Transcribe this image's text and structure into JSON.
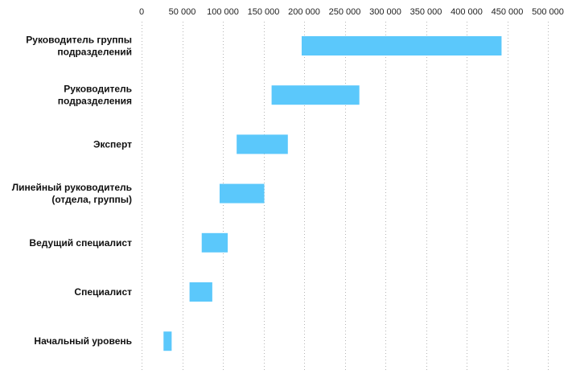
{
  "chart_data": {
    "type": "bar",
    "orientation": "horizontal",
    "bar_style": "floating-range",
    "title": "",
    "xlabel": "",
    "ylabel": "",
    "xlim": [
      0,
      500000
    ],
    "x_ticks": [
      0,
      50000,
      100000,
      150000,
      200000,
      250000,
      300000,
      350000,
      400000,
      450000,
      500000
    ],
    "x_tick_labels": [
      "0",
      "50 000",
      "100 000",
      "150 000",
      "200 000",
      "250 000",
      "300 000",
      "350 000",
      "400 000",
      "450 000",
      "500 000"
    ],
    "x_axis_position": "top",
    "grid": true,
    "legend": "none",
    "bar_color": "#5bc8fb",
    "categories": [
      [
        "Руководитель группы",
        "подразделений"
      ],
      [
        "Руководитель",
        "подразделения"
      ],
      [
        "Эксперт"
      ],
      [
        "Линейный руководитель",
        "(отдела, группы)"
      ],
      [
        "Ведущий специалист"
      ],
      [
        "Специалист"
      ],
      [
        "Начальный уровень"
      ]
    ],
    "ranges": [
      [
        197000,
        443000
      ],
      [
        160000,
        268000
      ],
      [
        117000,
        180000
      ],
      [
        96000,
        151000
      ],
      [
        74000,
        106000
      ],
      [
        59000,
        87000
      ],
      [
        27000,
        37000
      ]
    ]
  }
}
